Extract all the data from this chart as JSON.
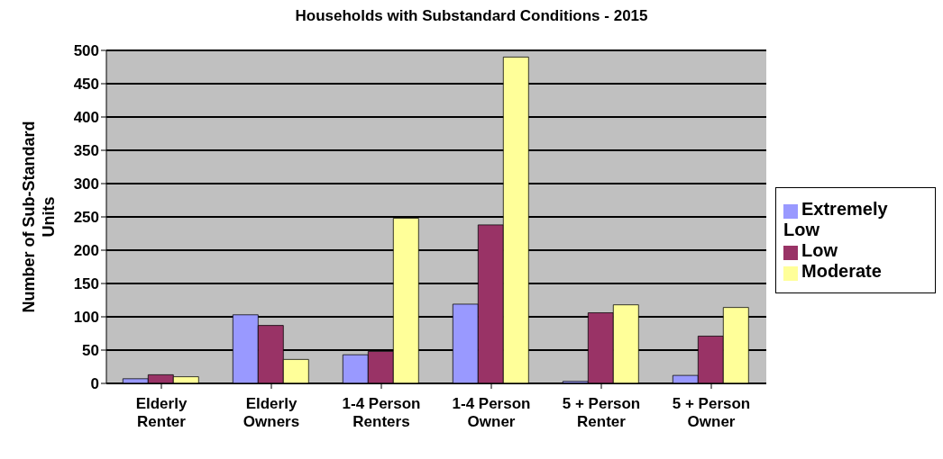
{
  "chart_data": {
    "type": "bar",
    "title": "Households with Substandard Conditions - 2015",
    "ylabel": "Number of Sub-Standard Units",
    "categories": [
      "Elderly Renter",
      "Elderly Owners",
      "1-4 Person Renters",
      "1-4 Person Owner",
      "5 + Person Renter",
      "5 + Person Owner"
    ],
    "series": [
      {
        "name": "Extremely Low",
        "color": "#9999ff",
        "values": [
          7,
          103,
          43,
          119,
          3,
          12
        ]
      },
      {
        "name": "Low",
        "color": "#993366",
        "values": [
          13,
          87,
          48,
          238,
          106,
          71
        ]
      },
      {
        "name": "Moderate",
        "color": "#ffff99",
        "values": [
          10,
          36,
          248,
          490,
          118,
          114
        ]
      }
    ],
    "ylim": [
      0,
      500
    ],
    "yticks": [
      0,
      50,
      100,
      150,
      200,
      250,
      300,
      350,
      400,
      450,
      500
    ],
    "grid": "y",
    "legend": "right"
  }
}
